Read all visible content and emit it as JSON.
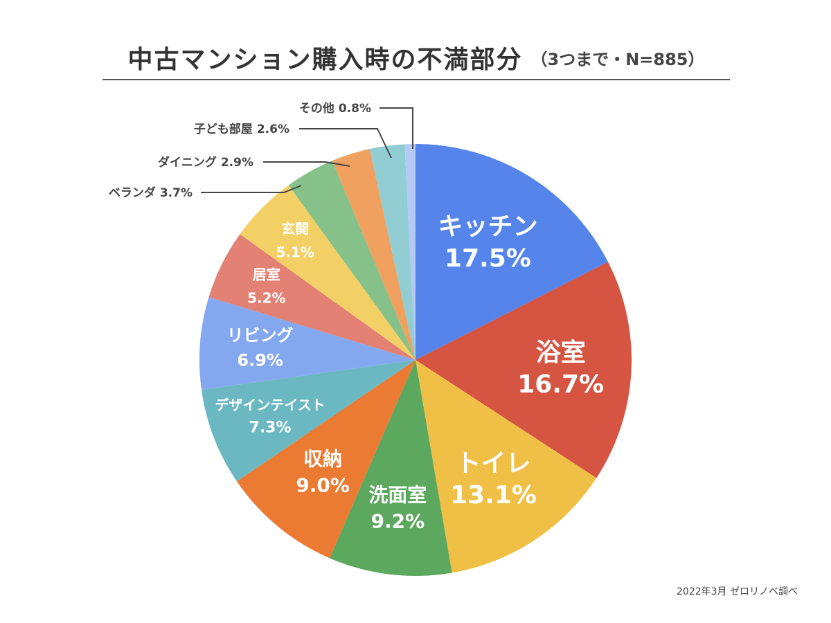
{
  "title": "中古マンション購入時の不満部分",
  "subtitle": "（3つまで・N=885）",
  "source": "2022年3月 ゼロリノベ調べ",
  "chart_data": {
    "type": "pie",
    "start_angle_deg": 0,
    "direction": "clockwise",
    "slices": [
      {
        "label": "キッチン",
        "value": 17.5,
        "value_text": "17.5%",
        "color": "#5585EB"
      },
      {
        "label": "浴室",
        "value": 16.7,
        "value_text": "16.7%",
        "color": "#D55442"
      },
      {
        "label": "トイレ",
        "value": 13.1,
        "value_text": "13.1%",
        "color": "#F0BF45"
      },
      {
        "label": "洗面室",
        "value": 9.2,
        "value_text": "9.2%",
        "color": "#5CA85F"
      },
      {
        "label": "収納",
        "value": 9.0,
        "value_text": "9.0%",
        "color": "#EB7A33"
      },
      {
        "label": "デザインテイスト",
        "value": 7.3,
        "value_text": "7.3%",
        "color": "#6BB8C3"
      },
      {
        "label": "リビング",
        "value": 6.9,
        "value_text": "6.9%",
        "color": "#84A8F0"
      },
      {
        "label": "居室",
        "value": 5.2,
        "value_text": "5.2%",
        "color": "#E28174"
      },
      {
        "label": "玄関",
        "value": 5.1,
        "value_text": "5.1%",
        "color": "#F3D066"
      },
      {
        "label": "ベランダ",
        "value": 3.7,
        "value_text": "3.7%",
        "color": "#87C18A"
      },
      {
        "label": "ダイニング",
        "value": 2.9,
        "value_text": "2.9%",
        "color": "#F0A05F"
      },
      {
        "label": "子ども部屋",
        "value": 2.6,
        "value_text": "2.6%",
        "color": "#92CDD4"
      },
      {
        "label": "その他",
        "value": 0.8,
        "value_text": "0.8%",
        "color": "#B5C9F5"
      }
    ]
  }
}
